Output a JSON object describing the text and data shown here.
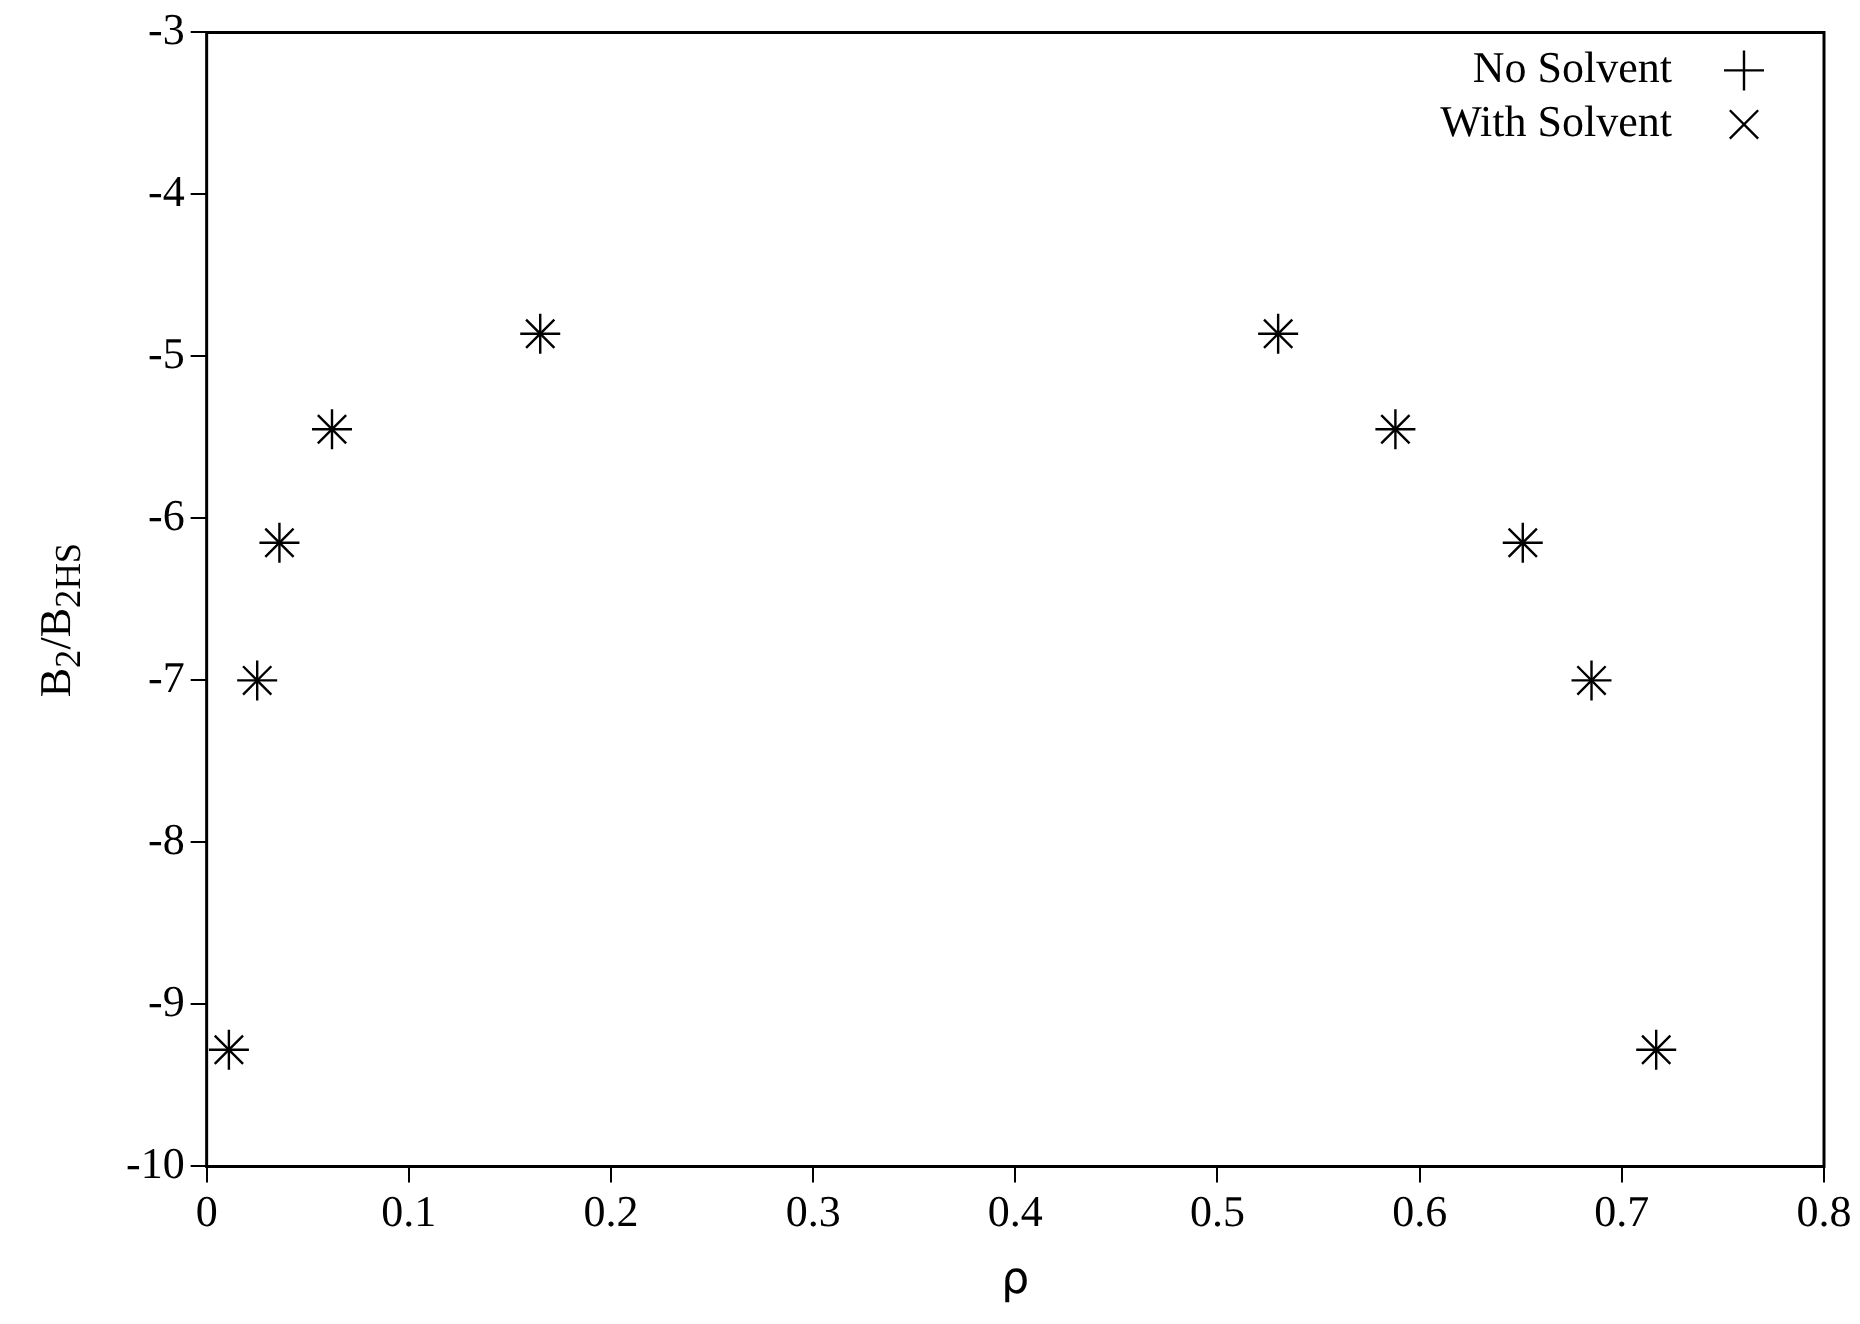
{
  "chart_data": {
    "type": "scatter",
    "xlabel": "ρ",
    "ylabel": "B$_{2}$/B$_{2HS}$",
    "xlim": [
      0,
      0.8
    ],
    "xticks": [
      0,
      0.1,
      0.2,
      0.3,
      0.4,
      0.5,
      0.6,
      0.7,
      0.8
    ],
    "ylim": [
      -10,
      -3
    ],
    "yticks": [
      -10,
      -9,
      -8,
      -7,
      -6,
      -5,
      -4,
      -3
    ],
    "grid": false,
    "legend": "top right",
    "series": [
      {
        "name": "No Solvent",
        "color": "#000000",
        "marker": "cross",
        "x": [
          0.011,
          0.025,
          0.036,
          0.062,
          0.165,
          0.53,
          0.588,
          0.651,
          0.685,
          0.717
        ],
        "values": [
          -9.28,
          -7.0,
          -6.15,
          -5.45,
          -4.86,
          -4.86,
          -5.45,
          -6.15,
          -7.0,
          -9.28
        ]
      },
      {
        "name": "With Solvent",
        "color": "#000000",
        "marker": "x",
        "x": [
          0.011,
          0.025,
          0.036,
          0.062,
          0.165,
          0.53,
          0.588,
          0.651,
          0.685,
          0.717
        ],
        "values": [
          -9.28,
          -7.0,
          -6.15,
          -5.45,
          -4.86,
          -4.86,
          -5.45,
          -6.15,
          -7.0,
          -9.28
        ]
      }
    ]
  }
}
